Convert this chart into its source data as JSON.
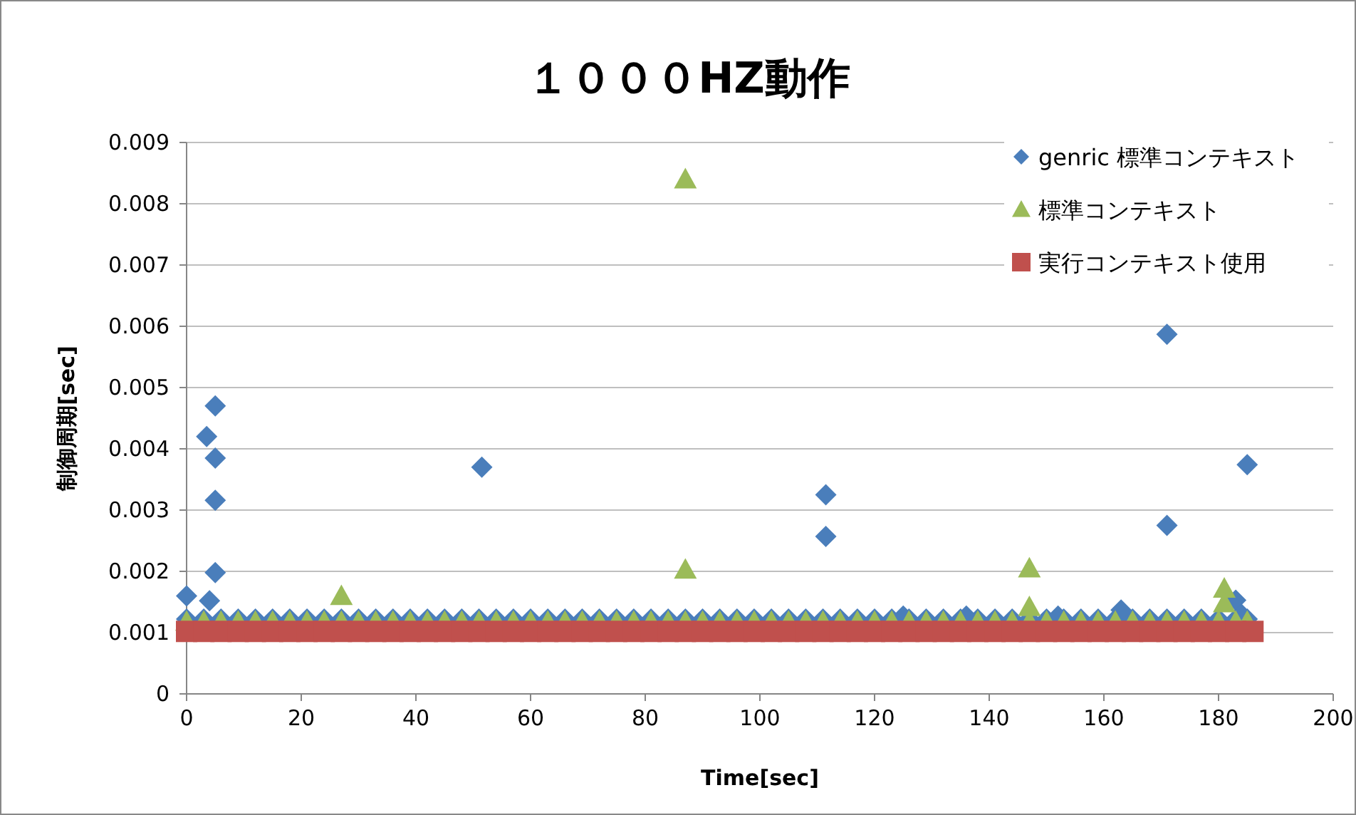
{
  "chart_data": {
    "type": "scatter",
    "title": "１０００HZ動作",
    "xlabel": "Time[sec]",
    "ylabel": "制御周期[sec]",
    "xlim": [
      0,
      200
    ],
    "xticks": [
      0,
      20,
      40,
      60,
      80,
      100,
      120,
      140,
      160,
      180,
      200
    ],
    "ylim": [
      0,
      0.009
    ],
    "yticks": [
      0,
      0.001,
      0.002,
      0.003,
      0.004,
      0.005,
      0.006,
      0.007,
      0.008,
      0.009
    ],
    "grid": "y",
    "legend": "top right",
    "series": [
      {
        "name": "genric 標準コンテキスト",
        "color": "#4a7ebb",
        "marker": "diamond",
        "x": [
          0,
          3,
          6,
          9,
          12,
          15,
          18,
          21,
          24,
          27,
          30,
          33,
          36,
          39,
          42,
          45,
          48,
          51,
          54,
          57,
          60,
          63,
          66,
          69,
          72,
          75,
          78,
          81,
          84,
          87,
          90,
          93,
          96,
          99,
          102,
          105,
          108,
          111,
          114,
          117,
          120,
          123,
          126,
          129,
          132,
          135,
          138,
          141,
          144,
          147,
          150,
          153,
          156,
          159,
          162,
          165,
          168,
          171,
          174,
          177,
          180,
          183,
          185,
          0,
          3.5,
          5,
          5,
          5,
          5,
          4,
          51.5,
          111.5,
          111.5,
          171,
          171,
          185,
          183,
          184,
          163,
          125,
          136,
          152
        ],
        "values": [
          0.00122,
          0.00122,
          0.00122,
          0.00122,
          0.00122,
          0.00122,
          0.00122,
          0.00122,
          0.00122,
          0.00122,
          0.00122,
          0.00122,
          0.00122,
          0.00122,
          0.00122,
          0.00122,
          0.00122,
          0.00122,
          0.00122,
          0.00122,
          0.00122,
          0.00122,
          0.00122,
          0.00122,
          0.00122,
          0.00122,
          0.00122,
          0.00122,
          0.00122,
          0.00122,
          0.00122,
          0.00122,
          0.00122,
          0.00122,
          0.00122,
          0.00122,
          0.00122,
          0.00122,
          0.00122,
          0.00122,
          0.00122,
          0.00122,
          0.00122,
          0.00122,
          0.00122,
          0.00122,
          0.00122,
          0.00122,
          0.00122,
          0.00122,
          0.00122,
          0.00122,
          0.00122,
          0.00122,
          0.00122,
          0.00122,
          0.00122,
          0.00122,
          0.00122,
          0.00122,
          0.00122,
          0.00122,
          0.00122,
          0.0016,
          0.0042,
          0.0047,
          0.00385,
          0.00316,
          0.00198,
          0.00152,
          0.0037,
          0.00325,
          0.00257,
          0.00587,
          0.00275,
          0.00374,
          0.00153,
          0.0013,
          0.00137,
          0.00127,
          0.00127,
          0.00127
        ]
      },
      {
        "name": "標準コンテキスト",
        "color": "#9bbb59",
        "marker": "triangle",
        "x": [
          0,
          3,
          6,
          9,
          12,
          15,
          18,
          21,
          24,
          27,
          30,
          33,
          36,
          39,
          42,
          45,
          48,
          51,
          54,
          57,
          60,
          63,
          66,
          69,
          72,
          75,
          78,
          81,
          84,
          87,
          90,
          93,
          96,
          99,
          102,
          105,
          108,
          111,
          114,
          117,
          120,
          123,
          126,
          129,
          132,
          135,
          138,
          141,
          144,
          147,
          150,
          153,
          156,
          159,
          162,
          165,
          168,
          171,
          174,
          177,
          180,
          183,
          185,
          27,
          87,
          87,
          147,
          147,
          181,
          181
        ],
        "values": [
          0.00118,
          0.00118,
          0.00118,
          0.00118,
          0.00118,
          0.00118,
          0.00118,
          0.00118,
          0.00118,
          0.00118,
          0.00118,
          0.00118,
          0.00118,
          0.00118,
          0.00118,
          0.00118,
          0.00118,
          0.00118,
          0.00118,
          0.00118,
          0.00118,
          0.00118,
          0.00118,
          0.00118,
          0.00118,
          0.00118,
          0.00118,
          0.00118,
          0.00118,
          0.00118,
          0.00118,
          0.00118,
          0.00118,
          0.00118,
          0.00118,
          0.00118,
          0.00118,
          0.00118,
          0.00118,
          0.00118,
          0.00118,
          0.00118,
          0.00118,
          0.00118,
          0.00118,
          0.00118,
          0.00118,
          0.00118,
          0.00118,
          0.00118,
          0.00118,
          0.00118,
          0.00118,
          0.00118,
          0.00118,
          0.00118,
          0.00118,
          0.00118,
          0.00118,
          0.00118,
          0.00118,
          0.00118,
          0.00118,
          0.0016,
          0.0084,
          0.00203,
          0.00205,
          0.00142,
          0.00172,
          0.00148
        ]
      },
      {
        "name": "実行コンテキスト使用",
        "color": "#c0504d",
        "marker": "square",
        "x": [
          0,
          3,
          6,
          9,
          12,
          15,
          18,
          21,
          24,
          27,
          30,
          33,
          36,
          39,
          42,
          45,
          48,
          51,
          54,
          57,
          60,
          63,
          66,
          69,
          72,
          75,
          78,
          81,
          84,
          87,
          90,
          93,
          96,
          99,
          102,
          105,
          108,
          111,
          114,
          117,
          120,
          123,
          126,
          129,
          132,
          135,
          138,
          141,
          144,
          147,
          150,
          153,
          156,
          159,
          162,
          165,
          168,
          171,
          174,
          177,
          180,
          183,
          186
        ],
        "values": [
          0.00102,
          0.00102,
          0.00102,
          0.00102,
          0.00102,
          0.00102,
          0.00102,
          0.00102,
          0.00102,
          0.00102,
          0.00102,
          0.00102,
          0.00102,
          0.00102,
          0.00102,
          0.00102,
          0.00102,
          0.00102,
          0.00102,
          0.00102,
          0.00102,
          0.00102,
          0.00102,
          0.00102,
          0.00102,
          0.00102,
          0.00102,
          0.00102,
          0.00102,
          0.00102,
          0.00102,
          0.00102,
          0.00102,
          0.00102,
          0.00102,
          0.00102,
          0.00102,
          0.00102,
          0.00102,
          0.00102,
          0.00102,
          0.00102,
          0.00102,
          0.00102,
          0.00102,
          0.00102,
          0.00102,
          0.00102,
          0.00102,
          0.00102,
          0.00102,
          0.00102,
          0.00102,
          0.00102,
          0.00102,
          0.00102,
          0.00102,
          0.00102,
          0.00102,
          0.00102,
          0.00102,
          0.00102,
          0.00102
        ]
      }
    ]
  }
}
